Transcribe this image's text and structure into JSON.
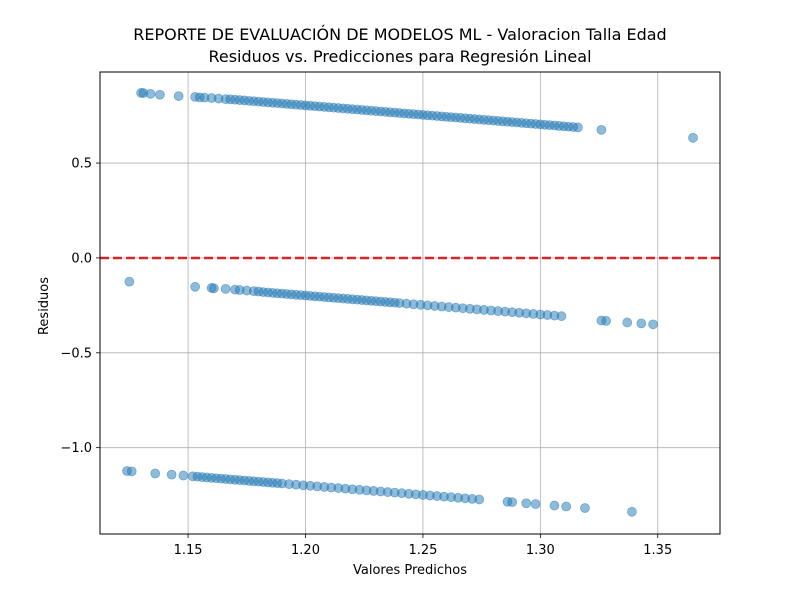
{
  "chart_data": {
    "type": "scatter",
    "title": "REPORTE DE EVALUACIÓN DE MODELOS ML - Valoracion Talla Edad",
    "subtitle": "Residuos vs. Predicciones para Regresión Lineal",
    "xlabel": "Valores Predichos",
    "ylabel": "Residuos",
    "xlim": [
      1.1125,
      1.3765
    ],
    "ylim": [
      -1.455,
      0.98
    ],
    "xticks": [
      1.15,
      1.2,
      1.25,
      1.3,
      1.35
    ],
    "xtick_labels": [
      "1.15",
      "1.20",
      "1.25",
      "1.30",
      "1.35"
    ],
    "yticks": [
      -1.0,
      -0.5,
      0.0,
      0.5
    ],
    "ytick_labels": [
      "−1.0",
      "−0.5",
      "0.0",
      "0.5"
    ],
    "grid": true,
    "reference_line": {
      "y": 0.0,
      "color": "#d62728",
      "style": "dashed"
    },
    "point_color": "#1f77b4",
    "point_alpha": 0.5,
    "series": [
      {
        "values": [
          {
            "x": 1.13,
            "y": 0.87
          },
          {
            "x": 1.131,
            "y": 0.869
          },
          {
            "x": 1.134,
            "y": 0.865
          },
          {
            "x": 1.138,
            "y": 0.86
          },
          {
            "x": 1.146,
            "y": 0.853
          },
          {
            "x": 1.153,
            "y": 0.849
          },
          {
            "x": 1.155,
            "y": 0.846
          },
          {
            "x": 1.157,
            "y": 0.845
          },
          {
            "x": 1.16,
            "y": 0.843
          },
          {
            "x": 1.163,
            "y": 0.84
          },
          {
            "x": 1.166,
            "y": 0.837
          },
          {
            "x": 1.168,
            "y": 0.836
          },
          {
            "x": 1.17,
            "y": 0.834
          },
          {
            "x": 1.172,
            "y": 0.832
          },
          {
            "x": 1.174,
            "y": 0.83
          },
          {
            "x": 1.176,
            "y": 0.828
          },
          {
            "x": 1.178,
            "y": 0.826
          },
          {
            "x": 1.18,
            "y": 0.824
          },
          {
            "x": 1.182,
            "y": 0.822
          },
          {
            "x": 1.184,
            "y": 0.82
          },
          {
            "x": 1.186,
            "y": 0.818
          },
          {
            "x": 1.188,
            "y": 0.816
          },
          {
            "x": 1.19,
            "y": 0.814
          },
          {
            "x": 1.192,
            "y": 0.812
          },
          {
            "x": 1.194,
            "y": 0.81
          },
          {
            "x": 1.196,
            "y": 0.808
          },
          {
            "x": 1.198,
            "y": 0.806
          },
          {
            "x": 1.2,
            "y": 0.804
          },
          {
            "x": 1.202,
            "y": 0.802
          },
          {
            "x": 1.204,
            "y": 0.8
          },
          {
            "x": 1.206,
            "y": 0.798
          },
          {
            "x": 1.208,
            "y": 0.796
          },
          {
            "x": 1.21,
            "y": 0.794
          },
          {
            "x": 1.212,
            "y": 0.792
          },
          {
            "x": 1.214,
            "y": 0.79
          },
          {
            "x": 1.216,
            "y": 0.788
          },
          {
            "x": 1.218,
            "y": 0.786
          },
          {
            "x": 1.22,
            "y": 0.784
          },
          {
            "x": 1.222,
            "y": 0.782
          },
          {
            "x": 1.224,
            "y": 0.78
          },
          {
            "x": 1.226,
            "y": 0.778
          },
          {
            "x": 1.228,
            "y": 0.776
          },
          {
            "x": 1.23,
            "y": 0.774
          },
          {
            "x": 1.232,
            "y": 0.772
          },
          {
            "x": 1.234,
            "y": 0.77
          },
          {
            "x": 1.236,
            "y": 0.768
          },
          {
            "x": 1.238,
            "y": 0.766
          },
          {
            "x": 1.24,
            "y": 0.764
          },
          {
            "x": 1.242,
            "y": 0.762
          },
          {
            "x": 1.244,
            "y": 0.76
          },
          {
            "x": 1.246,
            "y": 0.758
          },
          {
            "x": 1.248,
            "y": 0.756
          },
          {
            "x": 1.25,
            "y": 0.754
          },
          {
            "x": 1.252,
            "y": 0.752
          },
          {
            "x": 1.254,
            "y": 0.75
          },
          {
            "x": 1.256,
            "y": 0.748
          },
          {
            "x": 1.258,
            "y": 0.746
          },
          {
            "x": 1.26,
            "y": 0.744
          },
          {
            "x": 1.262,
            "y": 0.742
          },
          {
            "x": 1.264,
            "y": 0.74
          },
          {
            "x": 1.266,
            "y": 0.738
          },
          {
            "x": 1.268,
            "y": 0.736
          },
          {
            "x": 1.27,
            "y": 0.734
          },
          {
            "x": 1.272,
            "y": 0.732
          },
          {
            "x": 1.274,
            "y": 0.73
          },
          {
            "x": 1.276,
            "y": 0.728
          },
          {
            "x": 1.278,
            "y": 0.726
          },
          {
            "x": 1.28,
            "y": 0.724
          },
          {
            "x": 1.282,
            "y": 0.722
          },
          {
            "x": 1.284,
            "y": 0.72
          },
          {
            "x": 1.286,
            "y": 0.718
          },
          {
            "x": 1.288,
            "y": 0.716
          },
          {
            "x": 1.29,
            "y": 0.714
          },
          {
            "x": 1.292,
            "y": 0.712
          },
          {
            "x": 1.294,
            "y": 0.71
          },
          {
            "x": 1.296,
            "y": 0.708
          },
          {
            "x": 1.298,
            "y": 0.706
          },
          {
            "x": 1.3,
            "y": 0.704
          },
          {
            "x": 1.302,
            "y": 0.702
          },
          {
            "x": 1.304,
            "y": 0.7
          },
          {
            "x": 1.306,
            "y": 0.698
          },
          {
            "x": 1.308,
            "y": 0.696
          },
          {
            "x": 1.31,
            "y": 0.694
          },
          {
            "x": 1.312,
            "y": 0.692
          },
          {
            "x": 1.314,
            "y": 0.69
          },
          {
            "x": 1.316,
            "y": 0.688
          },
          {
            "x": 1.326,
            "y": 0.675
          },
          {
            "x": 1.365,
            "y": 0.633
          },
          {
            "x": 1.125,
            "y": -0.125
          },
          {
            "x": 1.153,
            "y": -0.152
          },
          {
            "x": 1.16,
            "y": -0.158
          },
          {
            "x": 1.161,
            "y": -0.16
          },
          {
            "x": 1.166,
            "y": -0.163
          },
          {
            "x": 1.17,
            "y": -0.167
          },
          {
            "x": 1.172,
            "y": -0.169
          },
          {
            "x": 1.175,
            "y": -0.172
          },
          {
            "x": 1.178,
            "y": -0.175
          },
          {
            "x": 1.18,
            "y": -0.177
          },
          {
            "x": 1.182,
            "y": -0.18
          },
          {
            "x": 1.184,
            "y": -0.182
          },
          {
            "x": 1.186,
            "y": -0.184
          },
          {
            "x": 1.188,
            "y": -0.186
          },
          {
            "x": 1.19,
            "y": -0.188
          },
          {
            "x": 1.192,
            "y": -0.19
          },
          {
            "x": 1.194,
            "y": -0.192
          },
          {
            "x": 1.196,
            "y": -0.194
          },
          {
            "x": 1.198,
            "y": -0.196
          },
          {
            "x": 1.2,
            "y": -0.198
          },
          {
            "x": 1.202,
            "y": -0.2
          },
          {
            "x": 1.204,
            "y": -0.202
          },
          {
            "x": 1.206,
            "y": -0.204
          },
          {
            "x": 1.208,
            "y": -0.206
          },
          {
            "x": 1.21,
            "y": -0.208
          },
          {
            "x": 1.212,
            "y": -0.21
          },
          {
            "x": 1.214,
            "y": -0.212
          },
          {
            "x": 1.216,
            "y": -0.214
          },
          {
            "x": 1.218,
            "y": -0.216
          },
          {
            "x": 1.22,
            "y": -0.218
          },
          {
            "x": 1.222,
            "y": -0.22
          },
          {
            "x": 1.224,
            "y": -0.222
          },
          {
            "x": 1.226,
            "y": -0.224
          },
          {
            "x": 1.228,
            "y": -0.226
          },
          {
            "x": 1.23,
            "y": -0.228
          },
          {
            "x": 1.232,
            "y": -0.23
          },
          {
            "x": 1.234,
            "y": -0.232
          },
          {
            "x": 1.236,
            "y": -0.234
          },
          {
            "x": 1.238,
            "y": -0.236
          },
          {
            "x": 1.24,
            "y": -0.238
          },
          {
            "x": 1.243,
            "y": -0.241
          },
          {
            "x": 1.246,
            "y": -0.244
          },
          {
            "x": 1.249,
            "y": -0.247
          },
          {
            "x": 1.252,
            "y": -0.25
          },
          {
            "x": 1.255,
            "y": -0.253
          },
          {
            "x": 1.258,
            "y": -0.256
          },
          {
            "x": 1.261,
            "y": -0.259
          },
          {
            "x": 1.264,
            "y": -0.262
          },
          {
            "x": 1.267,
            "y": -0.265
          },
          {
            "x": 1.27,
            "y": -0.268
          },
          {
            "x": 1.273,
            "y": -0.271
          },
          {
            "x": 1.276,
            "y": -0.274
          },
          {
            "x": 1.279,
            "y": -0.277
          },
          {
            "x": 1.282,
            "y": -0.28
          },
          {
            "x": 1.285,
            "y": -0.283
          },
          {
            "x": 1.288,
            "y": -0.286
          },
          {
            "x": 1.291,
            "y": -0.289
          },
          {
            "x": 1.294,
            "y": -0.292
          },
          {
            "x": 1.297,
            "y": -0.295
          },
          {
            "x": 1.3,
            "y": -0.298
          },
          {
            "x": 1.303,
            "y": -0.301
          },
          {
            "x": 1.306,
            "y": -0.304
          },
          {
            "x": 1.309,
            "y": -0.307
          },
          {
            "x": 1.326,
            "y": -0.33
          },
          {
            "x": 1.328,
            "y": -0.332
          },
          {
            "x": 1.337,
            "y": -0.34
          },
          {
            "x": 1.343,
            "y": -0.345
          },
          {
            "x": 1.348,
            "y": -0.35
          },
          {
            "x": 1.124,
            "y": -1.123
          },
          {
            "x": 1.126,
            "y": -1.125
          },
          {
            "x": 1.136,
            "y": -1.136
          },
          {
            "x": 1.143,
            "y": -1.142
          },
          {
            "x": 1.148,
            "y": -1.147
          },
          {
            "x": 1.152,
            "y": -1.151
          },
          {
            "x": 1.154,
            "y": -1.153
          },
          {
            "x": 1.156,
            "y": -1.155
          },
          {
            "x": 1.158,
            "y": -1.157
          },
          {
            "x": 1.16,
            "y": -1.159
          },
          {
            "x": 1.162,
            "y": -1.161
          },
          {
            "x": 1.164,
            "y": -1.163
          },
          {
            "x": 1.166,
            "y": -1.165
          },
          {
            "x": 1.168,
            "y": -1.167
          },
          {
            "x": 1.17,
            "y": -1.169
          },
          {
            "x": 1.172,
            "y": -1.171
          },
          {
            "x": 1.174,
            "y": -1.173
          },
          {
            "x": 1.176,
            "y": -1.175
          },
          {
            "x": 1.178,
            "y": -1.177
          },
          {
            "x": 1.18,
            "y": -1.179
          },
          {
            "x": 1.182,
            "y": -1.181
          },
          {
            "x": 1.184,
            "y": -1.183
          },
          {
            "x": 1.186,
            "y": -1.185
          },
          {
            "x": 1.188,
            "y": -1.187
          },
          {
            "x": 1.19,
            "y": -1.189
          },
          {
            "x": 1.193,
            "y": -1.192
          },
          {
            "x": 1.196,
            "y": -1.195
          },
          {
            "x": 1.199,
            "y": -1.198
          },
          {
            "x": 1.202,
            "y": -1.201
          },
          {
            "x": 1.205,
            "y": -1.204
          },
          {
            "x": 1.208,
            "y": -1.207
          },
          {
            "x": 1.211,
            "y": -1.21
          },
          {
            "x": 1.214,
            "y": -1.213
          },
          {
            "x": 1.217,
            "y": -1.216
          },
          {
            "x": 1.22,
            "y": -1.219
          },
          {
            "x": 1.223,
            "y": -1.222
          },
          {
            "x": 1.226,
            "y": -1.225
          },
          {
            "x": 1.229,
            "y": -1.228
          },
          {
            "x": 1.232,
            "y": -1.231
          },
          {
            "x": 1.235,
            "y": -1.234
          },
          {
            "x": 1.238,
            "y": -1.237
          },
          {
            "x": 1.241,
            "y": -1.24
          },
          {
            "x": 1.244,
            "y": -1.243
          },
          {
            "x": 1.247,
            "y": -1.246
          },
          {
            "x": 1.25,
            "y": -1.249
          },
          {
            "x": 1.253,
            "y": -1.252
          },
          {
            "x": 1.256,
            "y": -1.255
          },
          {
            "x": 1.259,
            "y": -1.258
          },
          {
            "x": 1.262,
            "y": -1.261
          },
          {
            "x": 1.265,
            "y": -1.264
          },
          {
            "x": 1.268,
            "y": -1.267
          },
          {
            "x": 1.271,
            "y": -1.27
          },
          {
            "x": 1.274,
            "y": -1.273
          },
          {
            "x": 1.286,
            "y": -1.285
          },
          {
            "x": 1.288,
            "y": -1.287
          },
          {
            "x": 1.294,
            "y": -1.293
          },
          {
            "x": 1.298,
            "y": -1.297
          },
          {
            "x": 1.306,
            "y": -1.305
          },
          {
            "x": 1.311,
            "y": -1.31
          },
          {
            "x": 1.319,
            "y": -1.318
          },
          {
            "x": 1.339,
            "y": -1.338
          }
        ]
      }
    ]
  }
}
